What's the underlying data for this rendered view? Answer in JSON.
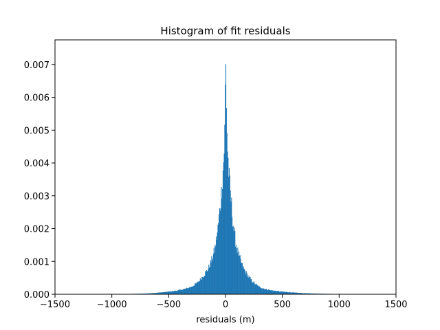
{
  "chart_data": {
    "type": "bar",
    "title": "Histogram of fit residuals",
    "xlabel": "residuals (m)",
    "ylabel": "",
    "xlim": [
      -1500,
      1500
    ],
    "ylim": [
      0,
      0.00775
    ],
    "x_ticks": [
      -1500,
      -1000,
      -500,
      0,
      500,
      1000,
      1500
    ],
    "x_tick_labels": [
      "−1500",
      "−1000",
      "−500",
      "0",
      "500",
      "1000",
      "1500"
    ],
    "y_ticks": [
      0,
      0.001,
      0.002,
      0.003,
      0.004,
      0.005,
      0.006,
      0.007
    ],
    "y_tick_labels": [
      "0.000",
      "0.001",
      "0.002",
      "0.003",
      "0.004",
      "0.005",
      "0.006",
      "0.007"
    ],
    "bar_color": "#1f77b4",
    "grid": false,
    "bin_width": 5,
    "bins": [
      {
        "x": -1000,
        "density": 5e-06
      },
      {
        "x": -950,
        "density": 6e-06
      },
      {
        "x": -900,
        "density": 8e-06
      },
      {
        "x": -850,
        "density": 1e-05
      },
      {
        "x": -800,
        "density": 1.3e-05
      },
      {
        "x": -750,
        "density": 1.7e-05
      },
      {
        "x": -700,
        "density": 2.3e-05
      },
      {
        "x": -650,
        "density": 3e-05
      },
      {
        "x": -600,
        "density": 4.5e-05
      },
      {
        "x": -550,
        "density": 6e-05
      },
      {
        "x": -500,
        "density": 8e-05
      },
      {
        "x": -450,
        "density": 0.0001
      },
      {
        "x": -400,
        "density": 0.00013
      },
      {
        "x": -350,
        "density": 0.00017
      },
      {
        "x": -300,
        "density": 0.00023
      },
      {
        "x": -250,
        "density": 0.00035
      },
      {
        "x": -200,
        "density": 0.00055
      },
      {
        "x": -150,
        "density": 0.0008
      },
      {
        "x": -100,
        "density": 0.0013
      },
      {
        "x": -75,
        "density": 0.0018
      },
      {
        "x": -50,
        "density": 0.0026
      },
      {
        "x": -30,
        "density": 0.0034
      },
      {
        "x": -15,
        "density": 0.0042
      },
      {
        "x": -5,
        "density": 0.0052
      },
      {
        "x": 0,
        "density": 0.0074
      },
      {
        "x": 5,
        "density": 0.0064
      },
      {
        "x": 15,
        "density": 0.0046
      },
      {
        "x": 30,
        "density": 0.0036
      },
      {
        "x": 50,
        "density": 0.0028
      },
      {
        "x": 75,
        "density": 0.0019
      },
      {
        "x": 100,
        "density": 0.0014
      },
      {
        "x": 150,
        "density": 0.00085
      },
      {
        "x": 200,
        "density": 0.00055
      },
      {
        "x": 250,
        "density": 0.00035
      },
      {
        "x": 300,
        "density": 0.00022
      },
      {
        "x": 350,
        "density": 0.00016
      },
      {
        "x": 400,
        "density": 0.00012
      },
      {
        "x": 450,
        "density": 0.0001
      },
      {
        "x": 500,
        "density": 8e-05
      },
      {
        "x": 550,
        "density": 6.5e-05
      },
      {
        "x": 600,
        "density": 5e-05
      },
      {
        "x": 650,
        "density": 4e-05
      },
      {
        "x": 700,
        "density": 3e-05
      },
      {
        "x": 750,
        "density": 2.5e-05
      },
      {
        "x": 800,
        "density": 2e-05
      },
      {
        "x": 850,
        "density": 1.6e-05
      },
      {
        "x": 900,
        "density": 1.3e-05
      },
      {
        "x": 950,
        "density": 1e-05
      },
      {
        "x": 1000,
        "density": 9e-06
      },
      {
        "x": 1050,
        "density": 7e-06
      },
      {
        "x": 1100,
        "density": 5e-06
      }
    ]
  }
}
